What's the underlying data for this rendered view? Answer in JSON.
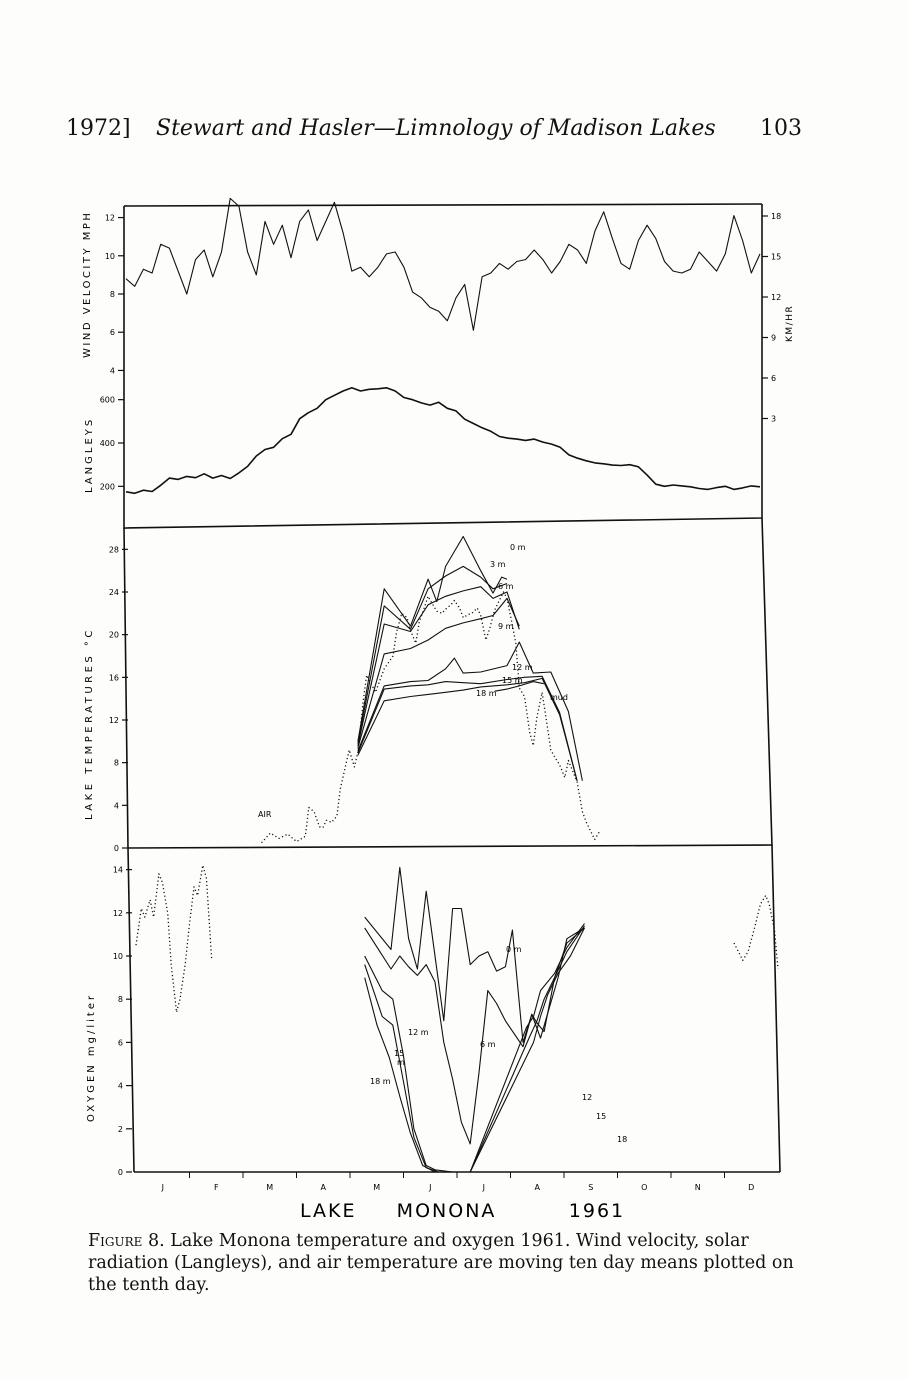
{
  "header": {
    "year": "1972]",
    "running_title": "Stewart and Hasler—Limnology of Madison Lakes",
    "page_number": "103"
  },
  "figure": {
    "footer_title": "LAKE     MONONA         1961",
    "months": [
      "J",
      "F",
      "M",
      "A",
      "M",
      "J",
      "J",
      "A",
      "S",
      "O",
      "N",
      "D"
    ]
  },
  "chart_data": [
    {
      "type": "line",
      "panel": "wind",
      "ylabel": "WIND VELOCITY MPH",
      "ylabel_right": "KM/HR",
      "y_ticks": [
        "4",
        "6",
        "8",
        "10",
        "12"
      ],
      "y_ticks_right": [
        "3",
        "6",
        "9",
        "12",
        "15",
        "18"
      ],
      "ylim": [
        3.5,
        12.5
      ],
      "series": [
        {
          "x": [
            0,
            5,
            10,
            15,
            20,
            25,
            30,
            35,
            40,
            45,
            50,
            55,
            60,
            65,
            70,
            75,
            80,
            85,
            90,
            95,
            100,
            105,
            110,
            115,
            120,
            125,
            130,
            135,
            140,
            145,
            150,
            155,
            160,
            165,
            170,
            175,
            180,
            185,
            190,
            195,
            200,
            205,
            210,
            215,
            220,
            225,
            230,
            235,
            240,
            245,
            250,
            255,
            260,
            265,
            270,
            275,
            280,
            285,
            290,
            295,
            300,
            305,
            310,
            315,
            320,
            325,
            330,
            335,
            340,
            345,
            350,
            355,
            360,
            365
          ],
          "values": [
            8.8,
            8.4,
            9.3,
            9.1,
            10.6,
            10.4,
            9.2,
            8.0,
            9.8,
            10.3,
            8.9,
            10.2,
            13.0,
            12.6,
            10.2,
            9.0,
            11.8,
            10.6,
            11.6,
            9.9,
            11.8,
            12.4,
            10.8,
            11.8,
            12.8,
            11.2,
            9.2,
            9.4,
            8.9,
            9.4,
            10.1,
            10.2,
            9.4,
            8.1,
            7.8,
            7.3,
            7.1,
            6.6,
            7.8,
            8.5,
            6.1,
            8.9,
            9.1,
            9.6,
            9.3,
            9.7,
            9.8,
            10.3,
            9.8,
            9.1,
            9.7,
            10.6,
            10.3,
            9.6,
            11.3,
            12.3,
            10.9,
            9.6,
            9.3,
            10.8,
            11.6,
            10.9,
            9.7,
            9.2,
            9.1,
            9.3,
            10.2,
            9.7,
            9.2,
            10.1,
            12.1,
            10.8,
            9.1,
            10.1
          ]
        }
      ]
    },
    {
      "type": "line",
      "panel": "solar radiation",
      "ylabel": "LANGLEYS",
      "y_ticks": [
        "200",
        "400",
        "600"
      ],
      "ylim": [
        100,
        700
      ],
      "series": [
        {
          "x": [
            0,
            5,
            10,
            15,
            20,
            25,
            30,
            35,
            40,
            45,
            50,
            55,
            60,
            65,
            70,
            75,
            80,
            85,
            90,
            95,
            100,
            105,
            110,
            115,
            120,
            125,
            130,
            135,
            140,
            145,
            150,
            155,
            160,
            165,
            170,
            175,
            180,
            185,
            190,
            195,
            200,
            205,
            210,
            215,
            220,
            225,
            230,
            235,
            240,
            245,
            250,
            255,
            260,
            265,
            270,
            275,
            280,
            285,
            290,
            295,
            300,
            305,
            310,
            315,
            320,
            325,
            330,
            335,
            340,
            345,
            350,
            355,
            360,
            365
          ],
          "values": [
            175,
            168,
            182,
            176,
            205,
            238,
            232,
            246,
            240,
            258,
            238,
            250,
            236,
            262,
            292,
            340,
            370,
            380,
            420,
            440,
            512,
            540,
            560,
            600,
            620,
            640,
            655,
            640,
            648,
            650,
            655,
            640,
            610,
            600,
            585,
            575,
            588,
            560,
            548,
            510,
            490,
            470,
            454,
            430,
            422,
            418,
            412,
            418,
            404,
            395,
            380,
            345,
            330,
            318,
            308,
            304,
            298,
            296,
            300,
            290,
            252,
            210,
            200,
            206,
            202,
            198,
            190,
            186,
            194,
            200,
            186,
            193,
            202,
            198
          ]
        }
      ]
    },
    {
      "type": "line",
      "panel": "lake temperatures",
      "ylabel": "LAKE TEMPERATURES °C",
      "y_ticks": [
        "0",
        "4",
        "8",
        "12",
        "16",
        "20",
        "24",
        "28"
      ],
      "ylim": [
        0,
        30
      ],
      "series": [
        {
          "name": "0 m",
          "x": [
            130,
            145,
            160,
            170,
            175,
            180,
            190,
            200,
            207,
            212,
            215
          ],
          "values": [
            10.0,
            24.3,
            20.8,
            25.2,
            23.1,
            26.4,
            29.2,
            26.0,
            23.9,
            25.4,
            25.2
          ]
        },
        {
          "name": "3 m",
          "x": [
            130,
            145,
            160,
            170,
            180,
            190,
            200,
            207,
            215
          ],
          "values": [
            9.8,
            22.7,
            20.5,
            24.3,
            25.5,
            26.4,
            25.4,
            24.3,
            24.8
          ]
        },
        {
          "name": "6 m",
          "x": [
            130,
            145,
            160,
            170,
            180,
            190,
            200,
            207,
            215,
            222
          ],
          "values": [
            9.6,
            21.0,
            20.3,
            22.8,
            23.6,
            24.1,
            24.5,
            23.4,
            24.0,
            20.5
          ]
        },
        {
          "name": "9 m",
          "x": [
            130,
            145,
            160,
            170,
            180,
            190,
            200,
            207,
            215,
            222
          ],
          "values": [
            9.4,
            18.2,
            18.7,
            19.5,
            20.6,
            21.1,
            21.5,
            21.8,
            23.4,
            20.8
          ]
        },
        {
          "name": "12 m",
          "x": [
            130,
            145,
            160,
            170,
            180,
            185,
            190,
            200,
            215,
            222,
            230,
            240,
            250,
            258
          ],
          "values": [
            9.1,
            15.2,
            15.6,
            15.7,
            16.8,
            17.8,
            16.4,
            16.5,
            17.1,
            19.3,
            16.4,
            16.5,
            12.8,
            6.3
          ]
        },
        {
          "name": "15 m",
          "x": [
            130,
            145,
            160,
            170,
            180,
            190,
            200,
            215,
            225,
            235,
            245,
            255
          ],
          "values": [
            8.9,
            14.9,
            15.2,
            15.3,
            15.6,
            15.5,
            15.4,
            15.8,
            16.0,
            16.1,
            12.7,
            6.3
          ]
        },
        {
          "name": "18 m",
          "x": [
            130,
            145,
            160,
            170,
            180,
            190,
            200,
            215,
            225,
            235,
            245,
            255
          ],
          "values": [
            8.7,
            13.8,
            14.2,
            14.4,
            14.6,
            14.8,
            15.1,
            15.3,
            15.5,
            15.9,
            12.5,
            6.3
          ]
        },
        {
          "name": "mud",
          "x": [
            208,
            215,
            222,
            230,
            236
          ],
          "values": [
            14.7,
            14.9,
            15.2,
            15.6,
            15.4
          ]
        },
        {
          "name": "AIR",
          "x": [
            75,
            80,
            85,
            90,
            95,
            100,
            102,
            105,
            108,
            110,
            112,
            115,
            118,
            120,
            122,
            125,
            128,
            130,
            133,
            135,
            140,
            145,
            150,
            152,
            155,
            158,
            160,
            163,
            165,
            168,
            170,
            172,
            175,
            178,
            180,
            183,
            185,
            188,
            190,
            193,
            195,
            198,
            200,
            203,
            205,
            208,
            210,
            213,
            215,
            218,
            220,
            222,
            225,
            228,
            230,
            232,
            235,
            238,
            240,
            242,
            245,
            248,
            250,
            253,
            255,
            258,
            260,
            262,
            265,
            268
          ],
          "values": [
            0.5,
            1.4,
            0.9,
            1.3,
            0.6,
            1.1,
            3.8,
            3.4,
            2.0,
            1.9,
            2.6,
            2.4,
            3.0,
            5.6,
            7.0,
            9.2,
            7.6,
            9.0,
            13.8,
            16.2,
            14.6,
            16.8,
            18.0,
            20.2,
            22.0,
            21.6,
            20.4,
            19.2,
            21.2,
            22.6,
            23.6,
            23.0,
            22.2,
            22.0,
            22.4,
            22.8,
            23.2,
            22.5,
            21.6,
            21.9,
            22.0,
            22.5,
            21.8,
            19.5,
            20.5,
            22.3,
            23.0,
            24.0,
            23.4,
            21.0,
            19.2,
            15.0,
            14.2,
            10.8,
            9.6,
            12.2,
            14.6,
            11.4,
            9.2,
            8.6,
            7.8,
            6.6,
            8.2,
            7.0,
            6.2,
            3.4,
            2.5,
            1.8,
            0.8,
            1.6
          ]
        }
      ]
    },
    {
      "type": "line",
      "panel": "oxygen",
      "ylabel": "OXYGEN mg/liter",
      "y_ticks": [
        "0",
        "2",
        "4",
        "6",
        "8",
        "10",
        "12",
        "14"
      ],
      "ylim": [
        0,
        15
      ],
      "series": [
        {
          "name": "0 m",
          "x": [
            130,
            145,
            150,
            155,
            160,
            165,
            170,
            175,
            180,
            185,
            190,
            195,
            200,
            205,
            210,
            214,
            220,
            225,
            230,
            240,
            245,
            255
          ],
          "values": [
            11.8,
            10.3,
            14.1,
            10.8,
            9.4,
            13.0,
            10.0,
            7.0,
            12.2,
            12.2,
            9.6,
            10.0,
            10.2,
            9.3,
            9.5,
            11.2,
            6.0,
            7.3,
            6.2,
            9.0,
            10.8,
            11.3
          ]
        },
        {
          "name": "6 m",
          "x": [
            130,
            145,
            150,
            155,
            160,
            165,
            170,
            175,
            180,
            185,
            190,
            195,
            200,
            205,
            210,
            220,
            225,
            228,
            232,
            238,
            245,
            255
          ],
          "values": [
            11.3,
            9.4,
            10.0,
            9.5,
            9.1,
            9.6,
            8.8,
            6.0,
            4.3,
            2.3,
            1.3,
            4.6,
            8.4,
            7.8,
            7.0,
            5.8,
            7.3,
            6.9,
            6.5,
            9.0,
            10.6,
            11.3
          ]
        },
        {
          "name": "12 m",
          "x": [
            130,
            140,
            146,
            152,
            158,
            165,
            170,
            180,
            190,
            222,
            226,
            230,
            238,
            245,
            255
          ],
          "values": [
            10.0,
            8.4,
            8.0,
            5.4,
            2.0,
            0.3,
            0.1,
            0.0,
            0.0,
            6.7,
            7.2,
            8.4,
            9.2,
            10.4,
            11.5
          ]
        },
        {
          "name": "15 m",
          "x": [
            130,
            140,
            146,
            152,
            158,
            165,
            172,
            180,
            190,
            224,
            228,
            232,
            238,
            245,
            255
          ],
          "values": [
            9.6,
            7.2,
            6.8,
            4.2,
            1.6,
            0.2,
            0.0,
            0.0,
            0.0,
            6.3,
            7.0,
            8.0,
            9.0,
            10.2,
            11.4
          ]
        },
        {
          "name": "18 m",
          "x": [
            130,
            137,
            144,
            150,
            156,
            163,
            170,
            180,
            190,
            226,
            230,
            234,
            240,
            247,
            255
          ],
          "values": [
            9.0,
            6.8,
            5.3,
            3.5,
            1.8,
            0.3,
            0.0,
            0.0,
            0.0,
            6.0,
            7.2,
            8.2,
            9.2,
            10.0,
            11.3
          ]
        },
        {
          "x": [
            0,
            3,
            5,
            8,
            10,
            13,
            15,
            18,
            20,
            23,
            25,
            28,
            30,
            33,
            35,
            38,
            40,
            43
          ],
          "values": [
            10.5,
            12.2,
            11.8,
            12.6,
            11.8,
            13.8,
            13.4,
            12.0,
            9.6,
            7.4,
            8.0,
            9.6,
            11.2,
            13.2,
            12.8,
            14.2,
            13.6,
            9.9
          ]
        },
        {
          "x": [
            340,
            345,
            348,
            352,
            355,
            358,
            360,
            363,
            365
          ],
          "values": [
            10.6,
            9.8,
            10.2,
            11.4,
            12.4,
            12.8,
            12.4,
            11.2,
            9.4
          ]
        }
      ]
    }
  ],
  "labels": {
    "s0m": "0 m",
    "s3m": "3 m",
    "s6m": "6 m",
    "s9m": "9 m",
    "s12m": "12 m",
    "s15m": "15 m",
    "s18m": "18 m",
    "mud": "mud",
    "air": "AIR",
    "o0m": "0 m",
    "o6m": "6 m",
    "o12m": "12 m",
    "o15a": "15",
    "o15b": "m",
    "o18m": "18 m",
    "o12r": "12",
    "o15r": "15",
    "o18r": "18"
  },
  "caption": {
    "lead": "Figure 8.",
    "text": " Lake Monona temperature and oxygen 1961. Wind velocity, solar radiation (Langleys), and air temperature are moving ten day means plotted on the tenth day."
  }
}
